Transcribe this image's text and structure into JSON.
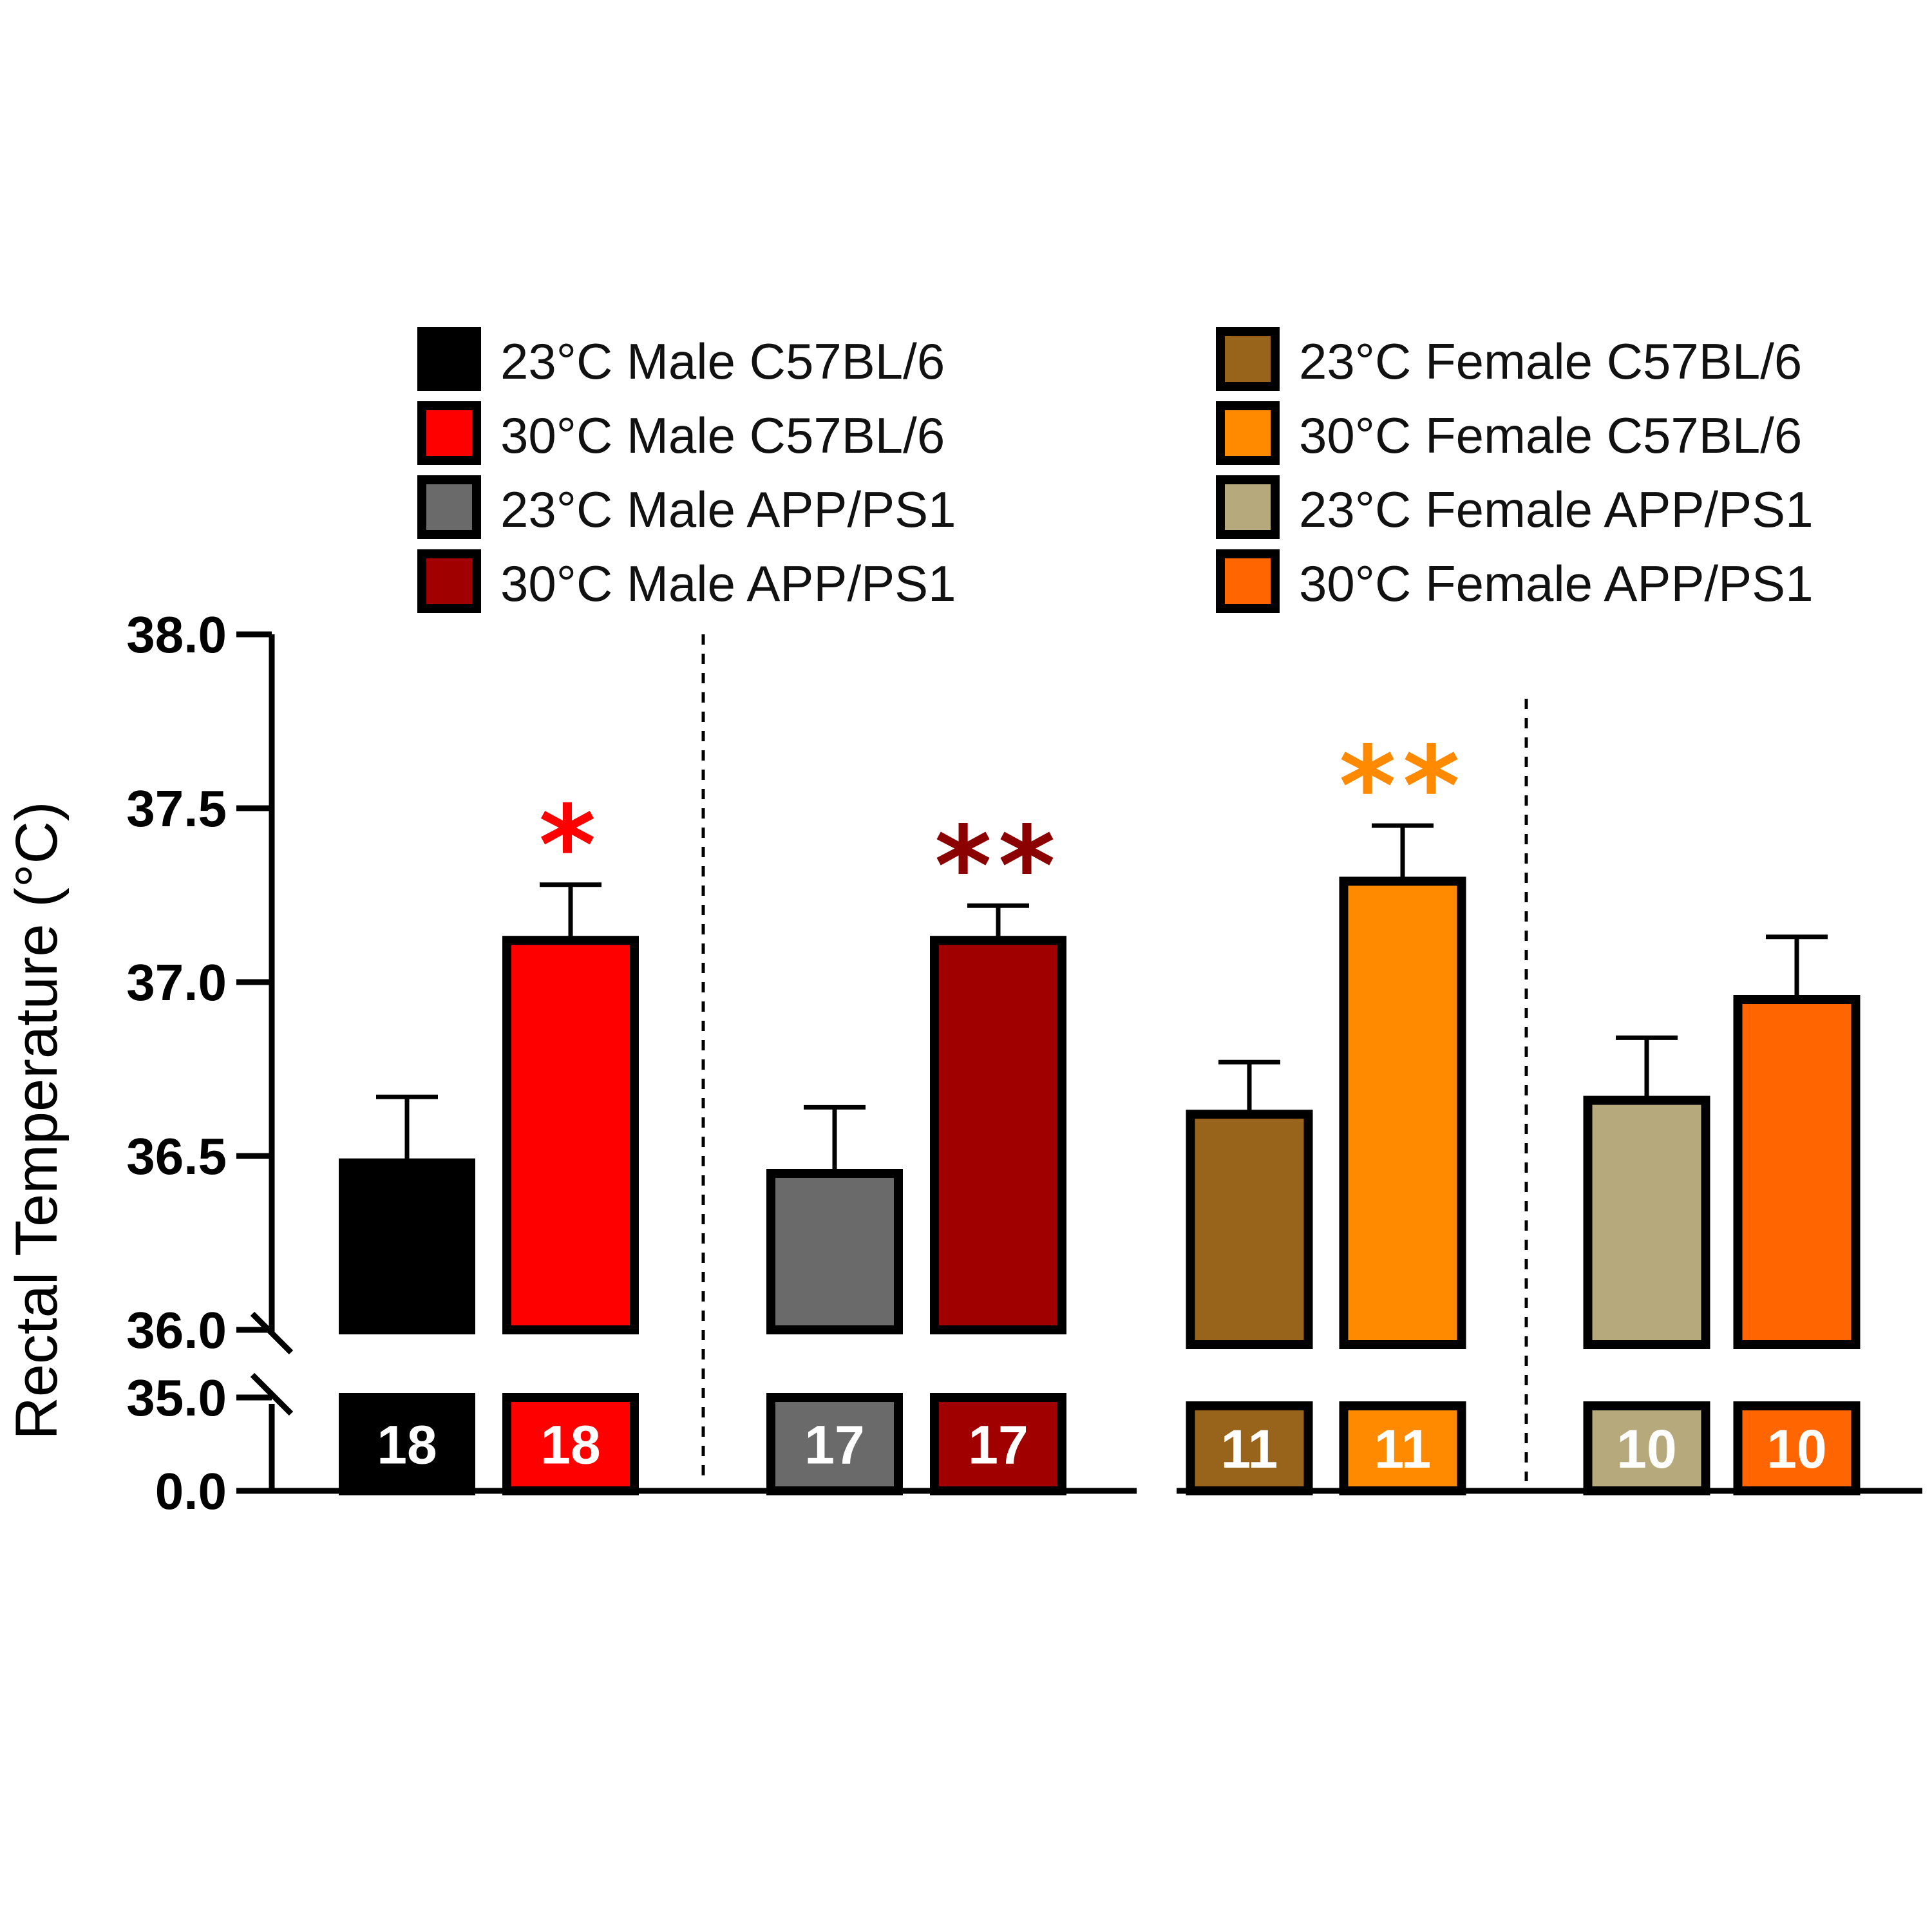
{
  "chart_data": {
    "type": "bar",
    "ylabel": "Rectal Temperature (°C)",
    "y_axis": {
      "broken": true,
      "lower_ticks": [
        "0.0",
        "35.0"
      ],
      "upper_ticks": [
        "36.0",
        "36.5",
        "37.0",
        "37.5",
        "38.0"
      ],
      "upper_range": [
        36.0,
        38.0
      ]
    },
    "groups": [
      {
        "bars": [
          {
            "legend": "23°C Male C57BL/6",
            "color": "#000000",
            "value": 36.48,
            "error": 0.19,
            "n": "18",
            "sig": ""
          },
          {
            "legend": "30°C Male C57BL/6",
            "color": "#ff0000",
            "value": 37.12,
            "error": 0.16,
            "n": "18",
            "sig": "*"
          }
        ]
      },
      {
        "bars": [
          {
            "legend": "23°C Male APP/PS1",
            "color": "#6a6a6a",
            "value": 36.45,
            "error": 0.19,
            "n": "17",
            "sig": ""
          },
          {
            "legend": "30°C Male APP/PS1",
            "color": "#a00000",
            "value": 37.12,
            "error": 0.1,
            "n": "17",
            "sig": "**"
          }
        ]
      },
      {
        "bars": [
          {
            "legend": "23°C Female C57BL/6",
            "color": "#98631a",
            "value": 36.62,
            "error": 0.15,
            "n": "11",
            "sig": ""
          },
          {
            "legend": "30°C Female C57BL/6",
            "color": "#ff8a00",
            "value": 37.29,
            "error": 0.16,
            "n": "11",
            "sig": "**"
          }
        ]
      },
      {
        "bars": [
          {
            "legend": "23°C Female APP/PS1",
            "color": "#b6aa7c",
            "value": 36.66,
            "error": 0.18,
            "n": "10",
            "sig": ""
          },
          {
            "legend": "30°C Female APP/PS1",
            "color": "#ff6500",
            "value": 36.95,
            "error": 0.18,
            "n": "10",
            "sig": ""
          }
        ]
      }
    ],
    "legend": {
      "left": [
        "23°C Male C57BL/6",
        "30°C Male C57BL/6",
        "23°C Male APP/PS1",
        "30°C Male APP/PS1"
      ],
      "right": [
        "23°C Female C57BL/6",
        "30°C Female C57BL/6",
        "23°C Female APP/PS1",
        "30°C Female APP/PS1"
      ]
    },
    "sig_colors": {
      "*": "#ff0000"
    },
    "legend_placement": "top"
  }
}
